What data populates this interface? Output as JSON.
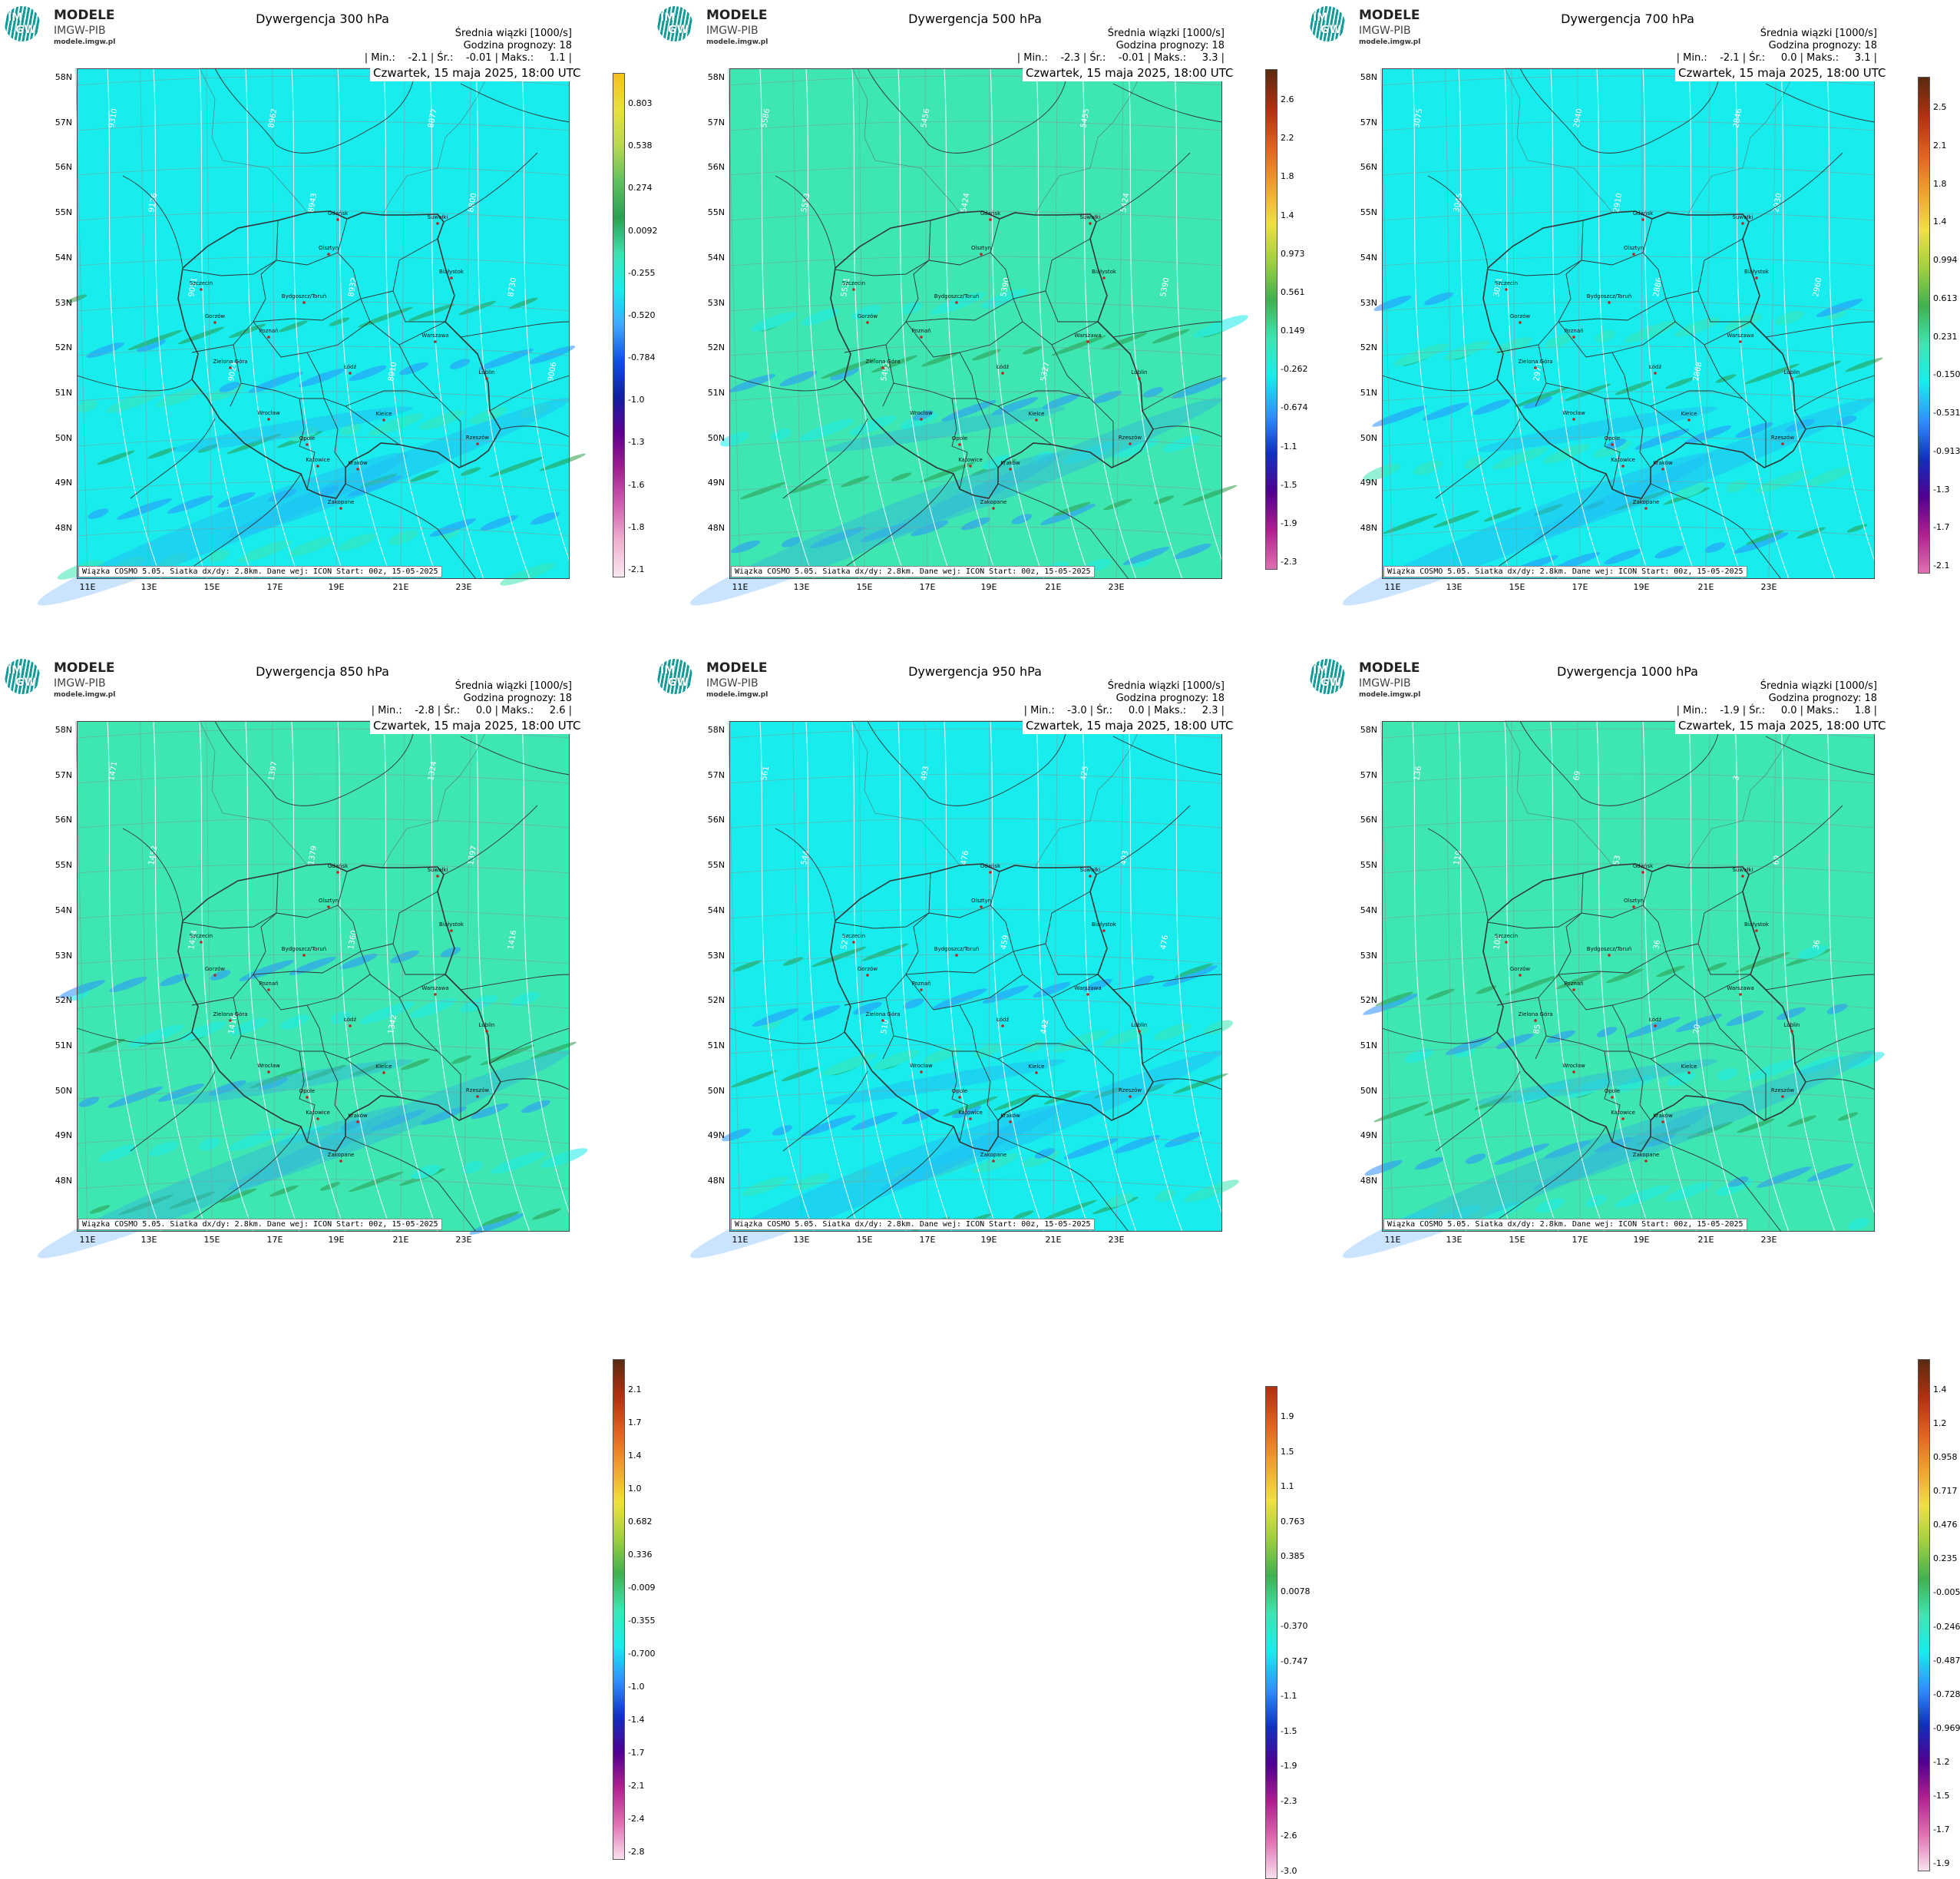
{
  "logo": {
    "brand": "MODELE",
    "subtitle": "IMGW-PIB",
    "url": "modele.imgw.pl",
    "initials_top": "IM",
    "initials_bottom": "GW"
  },
  "footer_text": "Wiązka COSMO 5.05. Siatka dx/dy: 2.8km. Dane wej: ICON Start: 00z, 15-05-2025",
  "date_text": "Czwartek, 15 maja 2025, 18:00 UTC",
  "lat_labels": [
    "58N",
    "57N",
    "56N",
    "55N",
    "54N",
    "53N",
    "52N",
    "51N",
    "50N",
    "49N",
    "48N"
  ],
  "lon_labels": [
    "11E",
    "13E",
    "15E",
    "17E",
    "19E",
    "21E",
    "23E"
  ],
  "colors": {
    "background_cyan": "#18ecec",
    "background_green": "#3ee6b2",
    "negative_blue": "#2a90ff",
    "positive_green": "#2a9a4a",
    "border": "#333333",
    "contour": "#ffffff"
  },
  "panels": [
    {
      "id": "p300",
      "title": "Dywergencja 300 hPa",
      "mean_label": "Średnia wiązki [1000/s]",
      "forecast_hour": "Godzina prognozy: 18",
      "stats": "| Min.:    -2.1 | Śr.:    -0.01 | Maks.:     1.1 |",
      "background": "cyan",
      "colorbar_labels": [
        "0.803",
        "0.538",
        "0.274",
        "0.0092",
        "-0.255",
        "-0.520",
        "-0.784",
        "-1.0",
        "-1.3",
        "-1.6",
        "-1.8",
        "-2.1"
      ],
      "colorbar_stops": [
        "#f4c020",
        "#e8e040",
        "#b8d850",
        "#60c060",
        "#2aa050",
        "#40e0b0",
        "#18ecec",
        "#40a8ff",
        "#1050e0",
        "#1020a0",
        "#600090",
        "#a02090",
        "#d060b0",
        "#f0b0d0",
        "#f8e8f0"
      ],
      "contour_values": [
        "9310",
        "9126",
        "9051",
        "9024",
        "8962",
        "8943",
        "8932",
        "8910",
        "8877",
        "8800",
        "8730",
        "9006"
      ]
    },
    {
      "id": "p500",
      "title": "Dywergencja 500 hPa",
      "mean_label": "Średnia wiązki [1000/s]",
      "forecast_hour": "Godzina prognozy: 18",
      "stats": "| Min.:    -2.3 | Śr.:    -0.01 | Maks.:     3.3 |",
      "background": "green",
      "colorbar_labels": [
        "2.6",
        "2.2",
        "1.8",
        "1.4",
        "0.973",
        "0.561",
        "0.149",
        "-0.262",
        "-0.674",
        "-1.1",
        "-1.5",
        "-1.9",
        "-2.3"
      ],
      "colorbar_stops": [
        "#5a2a10",
        "#b03010",
        "#e06020",
        "#f0a030",
        "#f0e040",
        "#a0d040",
        "#40b050",
        "#3ee6b2",
        "#18ecec",
        "#3090ff",
        "#1030c0",
        "#500090",
        "#b02090",
        "#e070b0"
      ],
      "contour_values": [
        "5586",
        "5553",
        "5531",
        "5492",
        "5456",
        "5424",
        "5390",
        "5327",
        "5455",
        "5424",
        "5390"
      ]
    },
    {
      "id": "p700",
      "title": "Dywergencja 700 hPa",
      "mean_label": "Średnia wiązki [1000/s]",
      "forecast_hour": "Godzina prognozy: 18",
      "stats": "| Min.:    -2.1 | Śr.:     0.0 | Maks.:     3.1 |",
      "background": "cyan",
      "colorbar_labels": [
        "2.5",
        "2.1",
        "1.8",
        "1.4",
        "0.994",
        "0.613",
        "0.231",
        "-0.150",
        "-0.531",
        "-0.913",
        "-1.3",
        "-1.7",
        "-2.1"
      ],
      "colorbar_stops": [
        "#5a2a10",
        "#b03010",
        "#e06020",
        "#f0a030",
        "#f0e040",
        "#a0d040",
        "#40b050",
        "#3ee6b2",
        "#18ecec",
        "#3090ff",
        "#1030c0",
        "#500090",
        "#b02090",
        "#e070b0"
      ],
      "contour_values": [
        "3075",
        "3045",
        "3011",
        "2971",
        "2940",
        "2910",
        "2886",
        "2868",
        "2846",
        "2930",
        "2960"
      ]
    },
    {
      "id": "p850",
      "title": "Dywergencja 850 hPa",
      "mean_label": "Średnia wiązki [1000/s]",
      "forecast_hour": "Godzina prognozy: 18",
      "stats": "| Min.:    -2.8 | Śr.:     0.0 | Maks.:     2.6 |",
      "background": "green",
      "colorbar_labels": [
        "2.1",
        "1.7",
        "1.4",
        "1.0",
        "0.682",
        "0.336",
        "-0.009",
        "-0.355",
        "-0.700",
        "-1.0",
        "-1.4",
        "-1.7",
        "-2.1",
        "-2.4",
        "-2.8"
      ],
      "colorbar_stops": [
        "#5a2a10",
        "#b03010",
        "#e06020",
        "#f0a030",
        "#f0e040",
        "#a0d040",
        "#40b050",
        "#3ee6b2",
        "#18ecec",
        "#3090ff",
        "#1030c0",
        "#500090",
        "#b02090",
        "#e070b0",
        "#f8e0ee"
      ],
      "contour_values": [
        "1471",
        "1452",
        "1434",
        "1416",
        "1397",
        "1379",
        "1360",
        "1342",
        "1324",
        "1397",
        "1416"
      ]
    },
    {
      "id": "p950",
      "title": "Dywergencja 950 hPa",
      "mean_label": "Średnia wiązki [1000/s]",
      "forecast_hour": "Godzina prognozy: 18",
      "stats": "| Min.:    -3.0 | Śr.:     0.0 | Maks.:     2.3 |",
      "background": "cyan",
      "colorbar_labels": [
        "1.9",
        "1.5",
        "1.1",
        "0.763",
        "0.385",
        "0.0078",
        "-0.370",
        "-0.747",
        "-1.1",
        "-1.5",
        "-1.9",
        "-2.3",
        "-2.6",
        "-3.0"
      ],
      "colorbar_stops": [
        "#b03010",
        "#e06020",
        "#f0a030",
        "#f0e040",
        "#a0d040",
        "#40b050",
        "#3ee6b2",
        "#18ecec",
        "#3090ff",
        "#1030c0",
        "#500090",
        "#b02090",
        "#e070b0",
        "#f8e0ee"
      ],
      "contour_values": [
        "561",
        "544",
        "527",
        "510",
        "493",
        "476",
        "459",
        "442",
        "425",
        "493",
        "476"
      ]
    },
    {
      "id": "p1000",
      "title": "Dywergencja 1000 hPa",
      "mean_label": "Średnia wiązki [1000/s]",
      "forecast_hour": "Godzina prognozy: 18",
      "stats": "| Min.:    -1.9 | Śr.:     0.0 | Maks.:     1.8 |",
      "background": "green",
      "colorbar_labels": [
        "1.4",
        "1.2",
        "0.958",
        "0.717",
        "0.476",
        "0.235",
        "-0.005",
        "-0.246",
        "-0.487",
        "-0.728",
        "-0.969",
        "-1.2",
        "-1.5",
        "-1.7",
        "-1.9"
      ],
      "colorbar_stops": [
        "#5a2a10",
        "#b03010",
        "#e06020",
        "#f0a030",
        "#f0e040",
        "#a0d040",
        "#40b050",
        "#3ee6b2",
        "#18ecec",
        "#3090ff",
        "#1030c0",
        "#500090",
        "#b02090",
        "#e070b0",
        "#f8e0ee"
      ],
      "contour_values": [
        "136",
        "119",
        "102",
        "85",
        "69",
        "53",
        "36",
        "20",
        "3",
        "69",
        "36"
      ]
    }
  ],
  "cities": [
    "Gdańsk",
    "Olsztyn",
    "Suwałki",
    "Białystok",
    "Szczecin",
    "Bydgoszcz/Toruń",
    "Gorzów",
    "Poznań",
    "Warszawa",
    "Zielona Góra",
    "Łódź",
    "Lublin",
    "Wrocław",
    "Kielce",
    "Opole",
    "Rzeszów",
    "Katowice",
    "Kraków",
    "Zakopane"
  ]
}
